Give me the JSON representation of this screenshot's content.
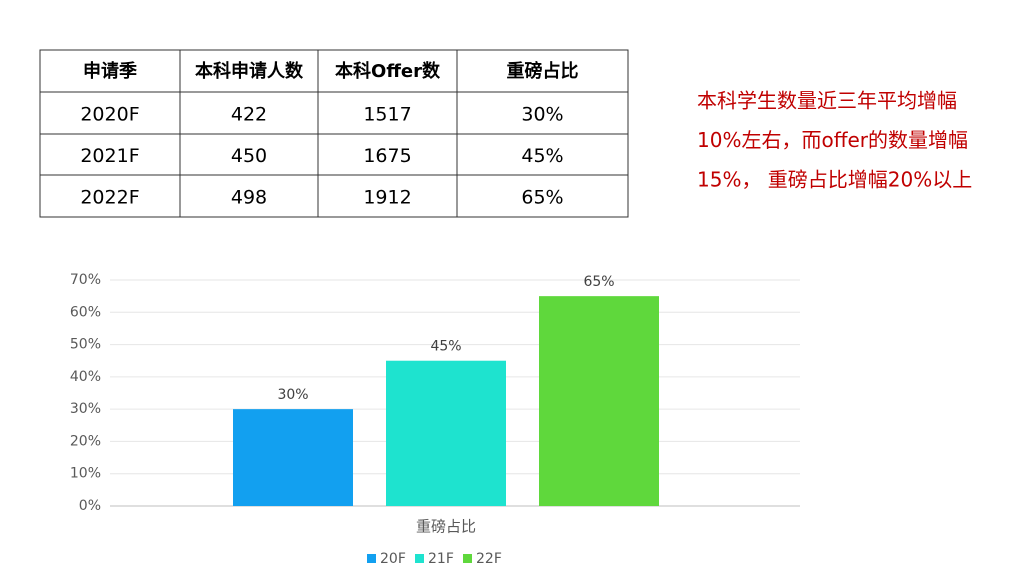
{
  "table": {
    "header": [
      "申请季",
      "本科申请人数",
      "本科Offer数",
      "重磅占比"
    ],
    "rows": [
      [
        "2020F",
        422,
        1517,
        "30%"
      ],
      [
        "2021F",
        450,
        1675,
        "45%"
      ],
      [
        "2022F",
        498,
        1912,
        "65%"
      ]
    ]
  },
  "note": [
    "本科学生数量近三年平均增幅",
    "10%左右，而offer的数量增幅",
    "15%， 重磅占比增幅20%以上"
  ],
  "chart_data": {
    "type": "bar",
    "categories": [
      "重磅占比"
    ],
    "series": [
      {
        "name": "20F",
        "color": "#12a0f0",
        "values": [
          30
        ],
        "value_labels": [
          "30%"
        ]
      },
      {
        "name": "21F",
        "color": "#1ee3cf",
        "values": [
          45
        ],
        "value_labels": [
          "45%"
        ]
      },
      {
        "name": "22F",
        "color": "#5fd83c",
        "values": [
          65
        ],
        "value_labels": [
          "65%"
        ]
      }
    ],
    "ylim": [
      0,
      70
    ],
    "yticks": [
      {
        "value": 0,
        "label": "0%"
      },
      {
        "value": 10,
        "label": "10%"
      },
      {
        "value": 20,
        "label": "20%"
      },
      {
        "value": 30,
        "label": "30%"
      },
      {
        "value": 40,
        "label": "40%"
      },
      {
        "value": 50,
        "label": "50%"
      },
      {
        "value": 60,
        "label": "60%"
      },
      {
        "value": 70,
        "label": "70%"
      }
    ],
    "grid": true,
    "legend": "bottom"
  }
}
